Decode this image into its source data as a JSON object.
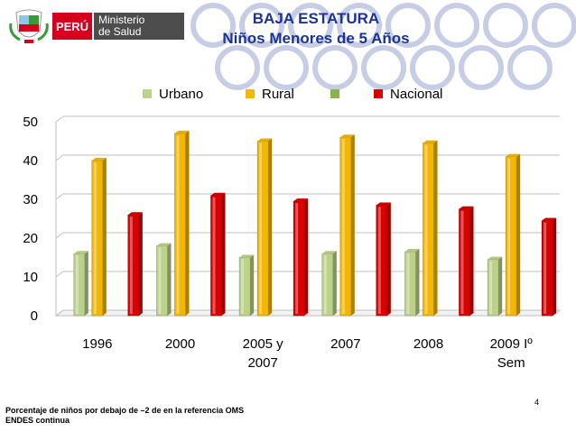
{
  "header": {
    "logo_peru": "PERÚ",
    "logo_ministry_line1": "Ministerio",
    "logo_ministry_line2": "de Salud",
    "title_line1": "BAJA ESTATURA",
    "title_line2": "Niños Menores de 5 Años"
  },
  "colors": {
    "urbano": "#bcd18a",
    "rural": "#f2b705",
    "unnamed_series": "#8ab34b",
    "nacional": "#d90000",
    "title": "#1a3399",
    "decorative_circles": "#c8cde6"
  },
  "chart_data": {
    "type": "bar",
    "categories": [
      "1996",
      "2000",
      "2005 y 2007",
      "2007",
      "2008",
      "2009 Iº Sem"
    ],
    "category_lines": [
      [
        "1996"
      ],
      [
        "2000"
      ],
      [
        "2005 y",
        "2007"
      ],
      [
        "2007"
      ],
      [
        "2008"
      ],
      [
        "2009 Iº",
        "Sem"
      ]
    ],
    "series": [
      {
        "name": "Urbano",
        "values": [
          16,
          18,
          15,
          16,
          16.5,
          14.5
        ]
      },
      {
        "name": "Rural",
        "values": [
          40,
          47,
          45,
          46,
          44.5,
          41
        ]
      },
      {
        "name": "",
        "values": [
          null,
          null,
          null,
          null,
          null,
          null
        ]
      },
      {
        "name": "Nacional",
        "values": [
          26,
          31,
          29.5,
          28.5,
          27.5,
          24.5
        ]
      }
    ],
    "ylim": [
      0,
      50
    ],
    "yticks": [
      0,
      10,
      20,
      30,
      40,
      50
    ],
    "grid": true,
    "legend": "top",
    "xlabel": "",
    "ylabel": ""
  },
  "footnote": {
    "line1": "Porcentaje de niños por debajo de –2 de en la referencia OMS",
    "line2": "ENDES continua"
  },
  "page_number": "4"
}
